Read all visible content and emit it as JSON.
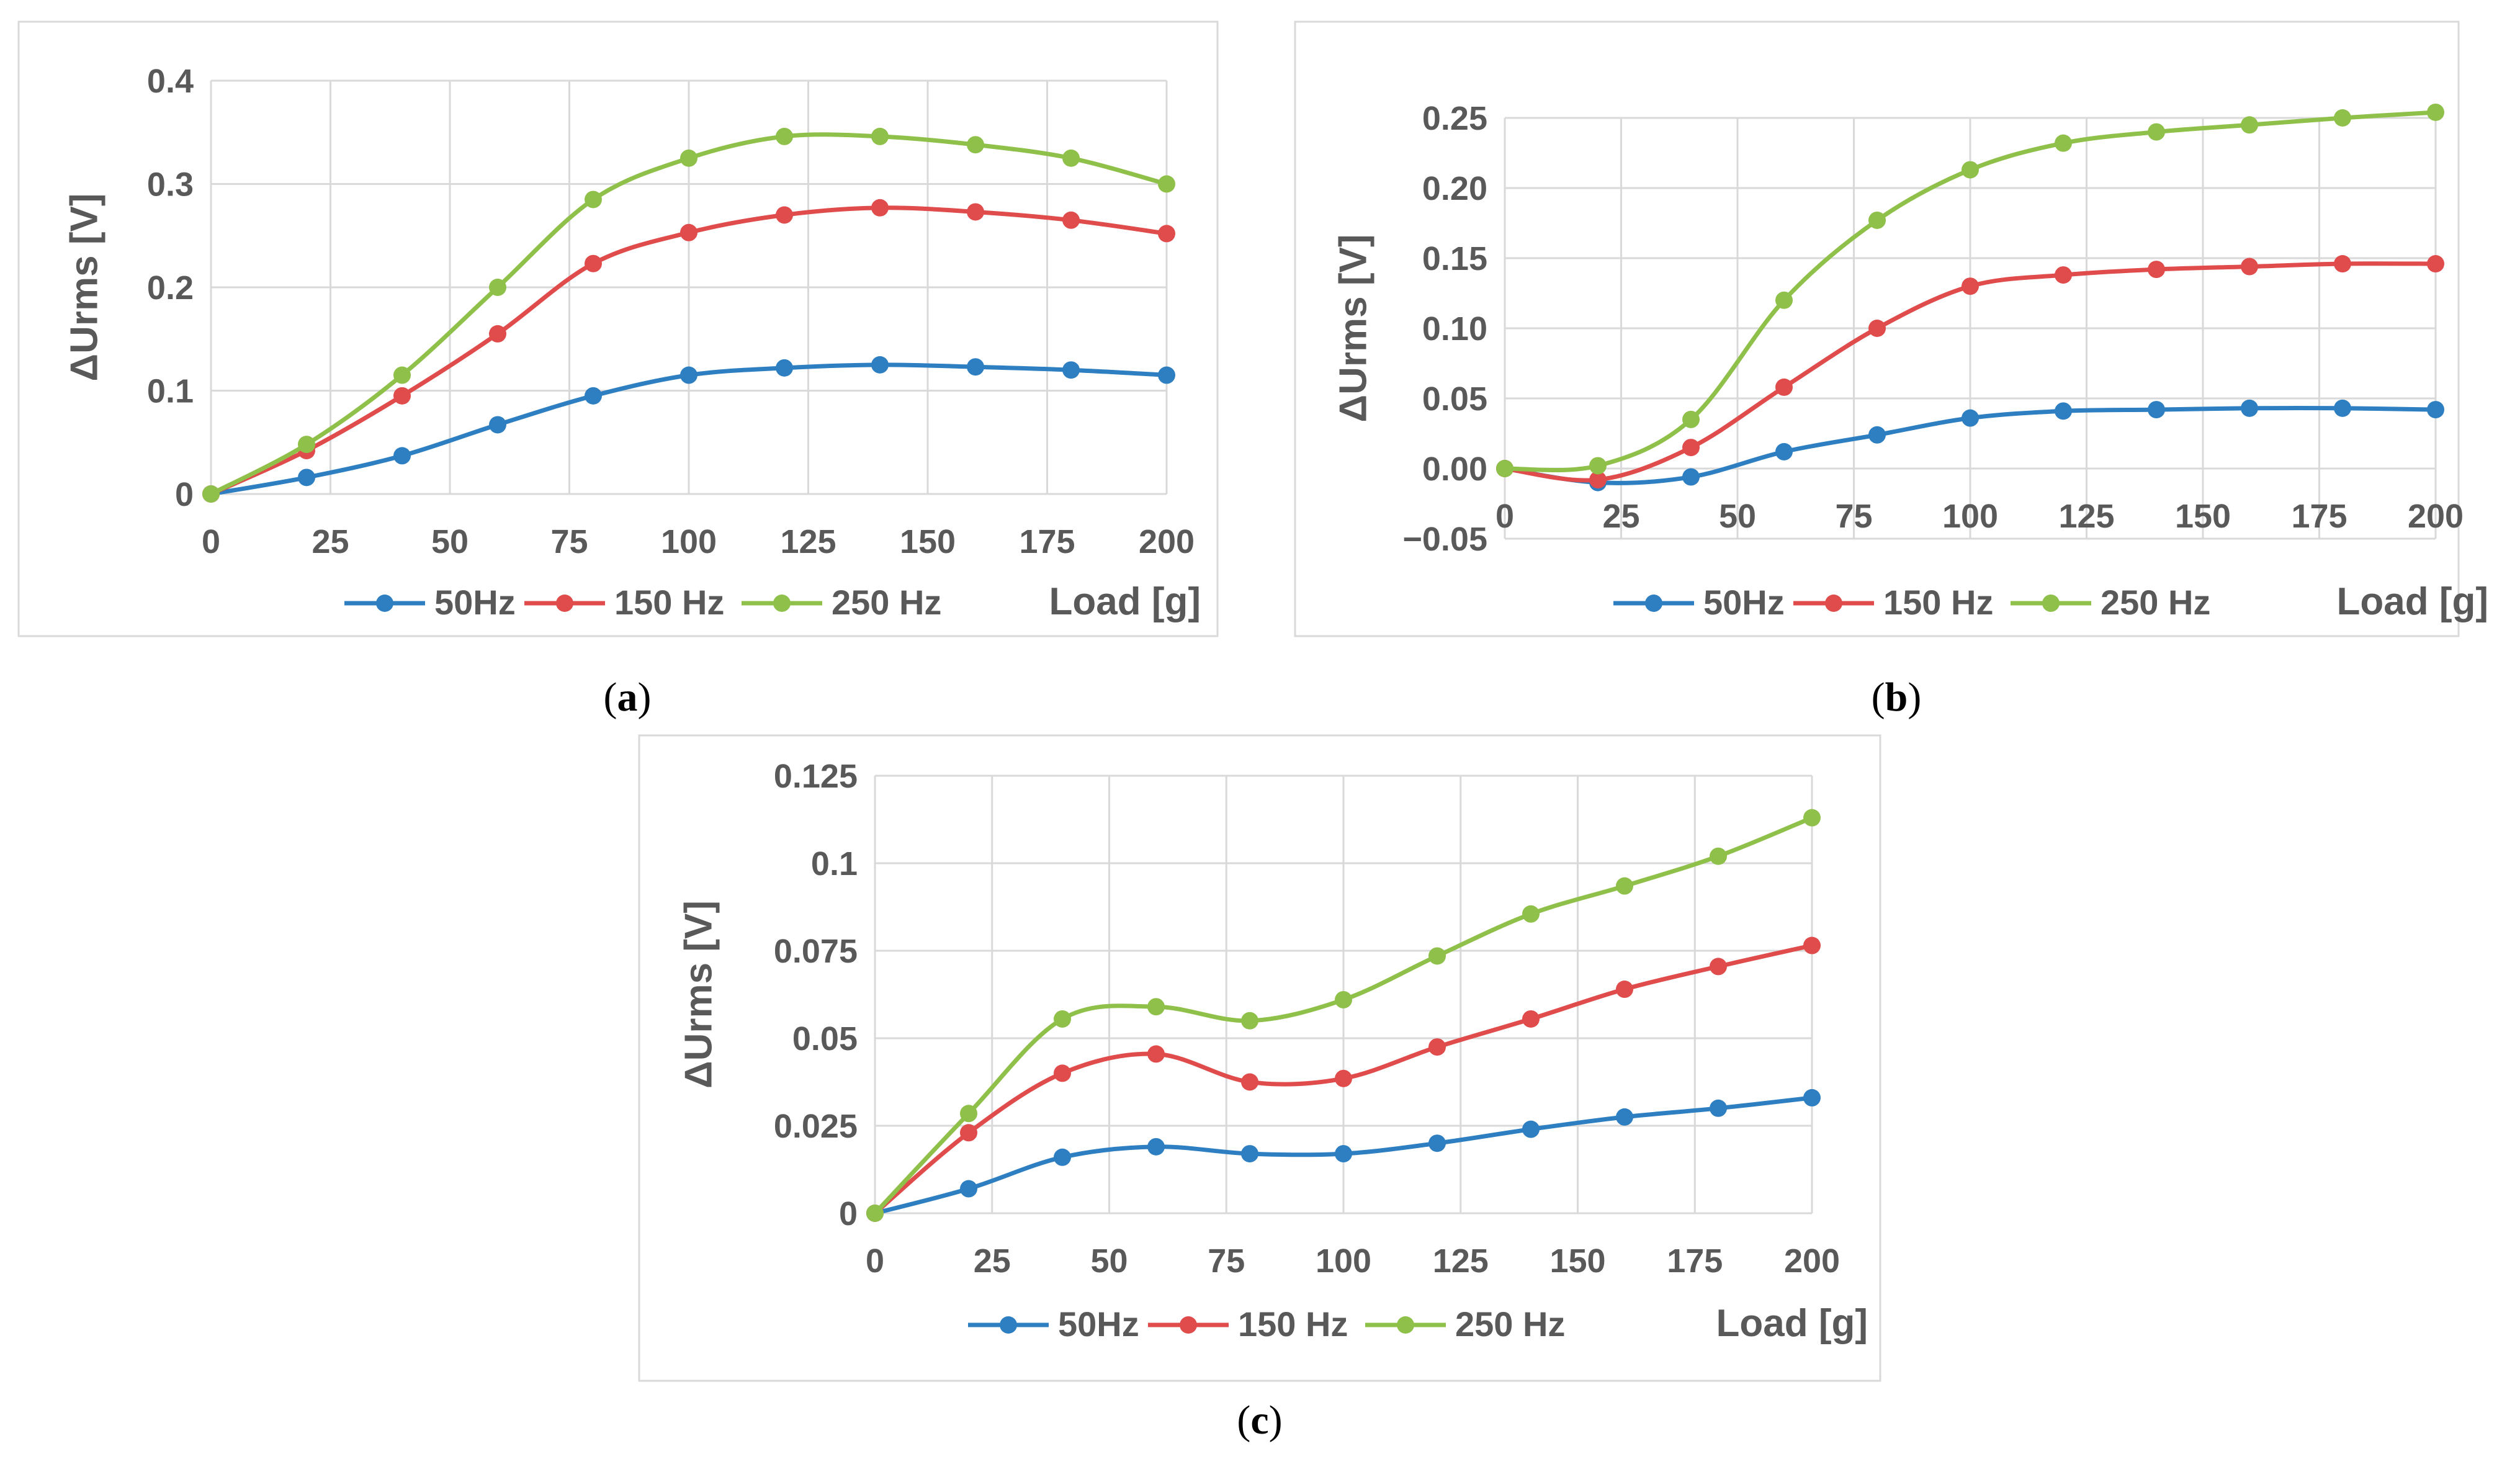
{
  "colors": {
    "grid": "#d9d9d9",
    "frame": "#d9d9d9",
    "text": "#595959",
    "series": [
      "#2e7fc1",
      "#e04b4b",
      "#8fc04a"
    ]
  },
  "chart_data": [
    {
      "type": "line",
      "panel": "a",
      "caption": {
        "open": "(",
        "letter": "a",
        "close": ")"
      },
      "ylabel": "ΔUrms [V]",
      "xlabel": "Load [g]",
      "xlim": [
        0,
        200
      ],
      "ylim": [
        0,
        0.4
      ],
      "xticks": [
        0,
        25,
        50,
        75,
        100,
        125,
        150,
        175,
        200
      ],
      "xtick_labels": [
        "0",
        "25",
        "50",
        "75",
        "100",
        "125",
        "150",
        "175",
        "200"
      ],
      "yticks": [
        0,
        0.1,
        0.2,
        0.3,
        0.4
      ],
      "ytick_labels": [
        "0",
        "0.1",
        "0.2",
        "0.3",
        "0.4"
      ],
      "x": [
        0,
        20,
        40,
        60,
        80,
        100,
        120,
        140,
        160,
        180,
        200
      ],
      "series": [
        {
          "name": "50Hz",
          "values": [
            0,
            0.016,
            0.037,
            0.067,
            0.095,
            0.115,
            0.122,
            0.125,
            0.123,
            0.12,
            0.115
          ]
        },
        {
          "name": "150 Hz",
          "values": [
            0,
            0.042,
            0.095,
            0.155,
            0.223,
            0.253,
            0.27,
            0.277,
            0.273,
            0.265,
            0.252
          ]
        },
        {
          "name": "250 Hz",
          "values": [
            0,
            0.048,
            0.115,
            0.2,
            0.285,
            0.325,
            0.346,
            0.346,
            0.338,
            0.325,
            0.3
          ]
        }
      ]
    },
    {
      "type": "line",
      "panel": "b",
      "caption": {
        "open": "(",
        "letter": "b",
        "close": ")"
      },
      "ylabel": "ΔUrms [V]",
      "xlabel": "Load [g]",
      "xlim": [
        0,
        200
      ],
      "ylim": [
        -0.05,
        0.25
      ],
      "xticks": [
        0,
        25,
        50,
        75,
        100,
        125,
        150,
        175,
        200
      ],
      "xtick_labels": [
        "0",
        "25",
        "50",
        "75",
        "100",
        "125",
        "150",
        "175",
        "200"
      ],
      "yticks": [
        -0.05,
        0,
        0.05,
        0.1,
        0.15,
        0.2,
        0.25
      ],
      "ytick_labels": [
        "−0.05",
        "0.00",
        "0.05",
        "0.10",
        "0.15",
        "0.20",
        "0.25"
      ],
      "x": [
        0,
        20,
        40,
        60,
        80,
        100,
        120,
        140,
        160,
        180,
        200
      ],
      "series": [
        {
          "name": "50Hz",
          "values": [
            0,
            -0.01,
            -0.006,
            0.012,
            0.024,
            0.036,
            0.041,
            0.042,
            0.043,
            0.043,
            0.042
          ]
        },
        {
          "name": "150 Hz",
          "values": [
            0,
            -0.008,
            0.015,
            0.058,
            0.1,
            0.13,
            0.138,
            0.142,
            0.144,
            0.146,
            0.146
          ]
        },
        {
          "name": "250 Hz",
          "values": [
            0,
            0.002,
            0.035,
            0.12,
            0.177,
            0.213,
            0.232,
            0.24,
            0.245,
            0.25,
            0.254
          ]
        }
      ]
    },
    {
      "type": "line",
      "panel": "c",
      "caption": {
        "open": "(",
        "letter": "c",
        "close": ")"
      },
      "ylabel": "ΔUrms [V]",
      "xlabel": "Load [g]",
      "xlim": [
        0,
        200
      ],
      "ylim": [
        0,
        0.125
      ],
      "xticks": [
        0,
        25,
        50,
        75,
        100,
        125,
        150,
        175,
        200
      ],
      "xtick_labels": [
        "0",
        "25",
        "50",
        "75",
        "100",
        "125",
        "150",
        "175",
        "200"
      ],
      "yticks": [
        0,
        0.025,
        0.05,
        0.075,
        0.1,
        0.125
      ],
      "ytick_labels": [
        "0",
        "0.025",
        "0.05",
        "0.075",
        "0.1",
        "0.125"
      ],
      "x": [
        0,
        20,
        40,
        60,
        80,
        100,
        120,
        140,
        160,
        180,
        200
      ],
      "series": [
        {
          "name": "50Hz",
          "values": [
            0,
            0.007,
            0.016,
            0.019,
            0.017,
            0.017,
            0.02,
            0.024,
            0.0275,
            0.03,
            0.033
          ]
        },
        {
          "name": "150 Hz",
          "values": [
            0,
            0.023,
            0.04,
            0.0455,
            0.0375,
            0.0385,
            0.0475,
            0.0555,
            0.064,
            0.0705,
            0.0765
          ]
        },
        {
          "name": "250 Hz",
          "values": [
            0,
            0.0285,
            0.0555,
            0.059,
            0.055,
            0.061,
            0.0735,
            0.0855,
            0.0935,
            0.102,
            0.113
          ]
        }
      ]
    }
  ]
}
